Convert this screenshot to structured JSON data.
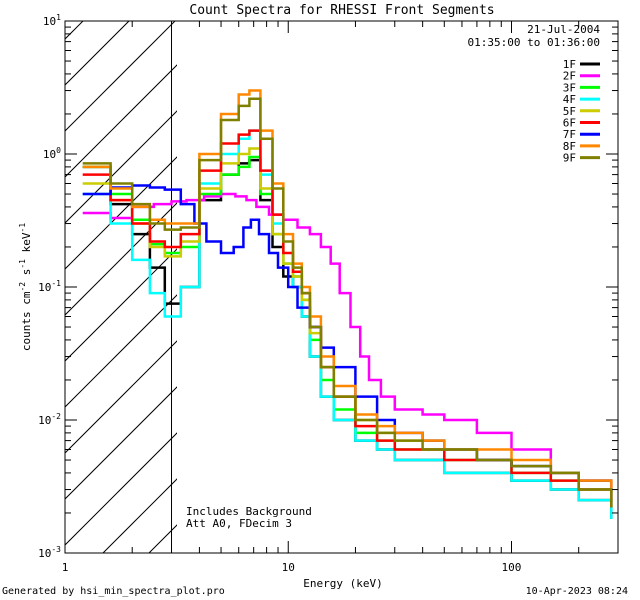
{
  "chart_data": {
    "type": "line",
    "title": "Count Spectra for RHESSI Front Segments",
    "xlabel": "Energy (keV)",
    "ylabel_parts": [
      "counts cm",
      "-2",
      " s",
      "-1",
      " keV",
      "-1"
    ],
    "x_scale": "log",
    "y_scale": "log",
    "xlim": [
      1,
      300
    ],
    "ylim": [
      0.001,
      10
    ],
    "x_ticks": [
      {
        "value": 1,
        "label": "1"
      },
      {
        "value": 10,
        "label": "10"
      },
      {
        "value": 100,
        "label": "100"
      }
    ],
    "y_ticks": [
      {
        "value": 0.001,
        "base": "10",
        "exp": "-3"
      },
      {
        "value": 0.01,
        "base": "10",
        "exp": "-2"
      },
      {
        "value": 0.1,
        "base": "10",
        "exp": "-1"
      },
      {
        "value": 1,
        "base": "10",
        "exp": "0"
      },
      {
        "value": 10,
        "base": "10",
        "exp": "1"
      }
    ],
    "attenuator_hatch_below_keV": 3,
    "legend_header": {
      "date": "21-Jul-2004",
      "time_range": "01:35:00 to 01:36:00"
    },
    "annotations": [
      "Includes Background",
      "Att A0, FDecim 3"
    ],
    "footer_left": "Generated by hsi_min_spectra_plot.pro",
    "footer_right": "10-Apr-2023 08:24",
    "series": [
      {
        "name": "1F",
        "color": "#000000",
        "points": [
          [
            1.2,
            0.8
          ],
          [
            1.6,
            0.42
          ],
          [
            2.0,
            0.25
          ],
          [
            2.4,
            0.14
          ],
          [
            2.8,
            0.075
          ],
          [
            3.3,
            0.1
          ],
          [
            4.0,
            0.45
          ],
          [
            5.0,
            0.7
          ],
          [
            6.0,
            0.85
          ],
          [
            6.7,
            0.9
          ],
          [
            7.5,
            0.45
          ],
          [
            8.5,
            0.2
          ],
          [
            9.5,
            0.12
          ],
          [
            10.5,
            0.1
          ],
          [
            11.5,
            0.06
          ],
          [
            12.5,
            0.03
          ],
          [
            14,
            0.015
          ],
          [
            16,
            0.01
          ],
          [
            20,
            0.007
          ],
          [
            25,
            0.006
          ],
          [
            30,
            0.005
          ],
          [
            40,
            0.005
          ],
          [
            50,
            0.004
          ],
          [
            70,
            0.004
          ],
          [
            100,
            0.0035
          ],
          [
            150,
            0.003
          ],
          [
            200,
            0.0025
          ],
          [
            280,
            0.0018
          ]
        ]
      },
      {
        "name": "2F",
        "color": "#ff00ff",
        "points": [
          [
            1.2,
            0.36
          ],
          [
            1.6,
            0.33
          ],
          [
            2.0,
            0.4
          ],
          [
            2.5,
            0.42
          ],
          [
            3.0,
            0.44
          ],
          [
            3.5,
            0.45
          ],
          [
            4.2,
            0.48
          ],
          [
            5.0,
            0.5
          ],
          [
            5.8,
            0.48
          ],
          [
            6.5,
            0.45
          ],
          [
            7.2,
            0.4
          ],
          [
            8.2,
            0.35
          ],
          [
            9.5,
            0.32
          ],
          [
            11,
            0.28
          ],
          [
            12.5,
            0.25
          ],
          [
            14,
            0.2
          ],
          [
            15.5,
            0.15
          ],
          [
            17,
            0.09
          ],
          [
            19,
            0.05
          ],
          [
            21,
            0.03
          ],
          [
            23,
            0.02
          ],
          [
            26,
            0.015
          ],
          [
            30,
            0.012
          ],
          [
            40,
            0.011
          ],
          [
            50,
            0.01
          ],
          [
            70,
            0.008
          ],
          [
            100,
            0.006
          ],
          [
            150,
            0.004
          ],
          [
            200,
            0.0035
          ],
          [
            280,
            0.0025
          ]
        ]
      },
      {
        "name": "3F",
        "color": "#00ff00",
        "points": [
          [
            1.2,
            0.8
          ],
          [
            1.6,
            0.5
          ],
          [
            2.0,
            0.32
          ],
          [
            2.4,
            0.21
          ],
          [
            2.8,
            0.18
          ],
          [
            3.3,
            0.2
          ],
          [
            4.0,
            0.5
          ],
          [
            5.0,
            0.7
          ],
          [
            6.0,
            0.8
          ],
          [
            6.7,
            0.95
          ],
          [
            7.5,
            0.5
          ],
          [
            8.5,
            0.25
          ],
          [
            9.5,
            0.15
          ],
          [
            10.5,
            0.12
          ],
          [
            11.5,
            0.08
          ],
          [
            12.5,
            0.04
          ],
          [
            14,
            0.02
          ],
          [
            16,
            0.012
          ],
          [
            20,
            0.008
          ],
          [
            25,
            0.007
          ],
          [
            30,
            0.006
          ],
          [
            40,
            0.006
          ],
          [
            50,
            0.005
          ],
          [
            70,
            0.005
          ],
          [
            100,
            0.004
          ],
          [
            150,
            0.0035
          ],
          [
            200,
            0.003
          ],
          [
            280,
            0.0022
          ]
        ]
      },
      {
        "name": "4F",
        "color": "#00ffff",
        "points": [
          [
            1.2,
            0.5
          ],
          [
            1.6,
            0.3
          ],
          [
            2.0,
            0.16
          ],
          [
            2.4,
            0.09
          ],
          [
            2.8,
            0.06
          ],
          [
            3.3,
            0.1
          ],
          [
            4.0,
            0.6
          ],
          [
            5.0,
            1.0
          ],
          [
            6.0,
            1.3
          ],
          [
            6.7,
            1.5
          ],
          [
            7.5,
            0.7
          ],
          [
            8.5,
            0.3
          ],
          [
            9.5,
            0.15
          ],
          [
            10.5,
            0.1
          ],
          [
            11.5,
            0.06
          ],
          [
            12.5,
            0.03
          ],
          [
            14,
            0.015
          ],
          [
            16,
            0.01
          ],
          [
            20,
            0.007
          ],
          [
            25,
            0.006
          ],
          [
            30,
            0.005
          ],
          [
            40,
            0.005
          ],
          [
            50,
            0.004
          ],
          [
            70,
            0.004
          ],
          [
            100,
            0.0035
          ],
          [
            150,
            0.003
          ],
          [
            200,
            0.0025
          ],
          [
            280,
            0.0018
          ]
        ]
      },
      {
        "name": "5F",
        "color": "#cccc00",
        "points": [
          [
            1.2,
            0.6
          ],
          [
            1.6,
            0.45
          ],
          [
            2.0,
            0.3
          ],
          [
            2.4,
            0.2
          ],
          [
            2.8,
            0.17
          ],
          [
            3.3,
            0.22
          ],
          [
            4.0,
            0.55
          ],
          [
            5.0,
            0.85
          ],
          [
            6.0,
            1.0
          ],
          [
            6.7,
            1.1
          ],
          [
            7.5,
            0.55
          ],
          [
            8.5,
            0.25
          ],
          [
            9.5,
            0.15
          ],
          [
            10.5,
            0.12
          ],
          [
            11.5,
            0.08
          ],
          [
            12.5,
            0.045
          ],
          [
            14,
            0.025
          ],
          [
            16,
            0.015
          ],
          [
            20,
            0.01
          ],
          [
            25,
            0.008
          ],
          [
            30,
            0.007
          ],
          [
            40,
            0.007
          ],
          [
            50,
            0.006
          ],
          [
            70,
            0.005
          ],
          [
            100,
            0.0045
          ],
          [
            150,
            0.004
          ],
          [
            200,
            0.0035
          ],
          [
            280,
            0.0028
          ]
        ]
      },
      {
        "name": "6F",
        "color": "#ff0000",
        "points": [
          [
            1.2,
            0.7
          ],
          [
            1.6,
            0.45
          ],
          [
            2.0,
            0.3
          ],
          [
            2.4,
            0.22
          ],
          [
            2.8,
            0.2
          ],
          [
            3.3,
            0.25
          ],
          [
            4.0,
            0.75
          ],
          [
            5.0,
            1.2
          ],
          [
            6.0,
            1.4
          ],
          [
            6.7,
            1.5
          ],
          [
            7.5,
            0.75
          ],
          [
            8.5,
            0.35
          ],
          [
            9.5,
            0.18
          ],
          [
            10.5,
            0.13
          ],
          [
            11.5,
            0.09
          ],
          [
            12.5,
            0.05
          ],
          [
            14,
            0.025
          ],
          [
            16,
            0.015
          ],
          [
            20,
            0.009
          ],
          [
            25,
            0.007
          ],
          [
            30,
            0.006
          ],
          [
            40,
            0.006
          ],
          [
            50,
            0.005
          ],
          [
            70,
            0.005
          ],
          [
            100,
            0.004
          ],
          [
            150,
            0.0035
          ],
          [
            200,
            0.003
          ],
          [
            280,
            0.0022
          ]
        ]
      },
      {
        "name": "7F",
        "color": "#0000ff",
        "points": [
          [
            1.2,
            0.5
          ],
          [
            1.6,
            0.56
          ],
          [
            2.0,
            0.58
          ],
          [
            2.4,
            0.56
          ],
          [
            2.8,
            0.54
          ],
          [
            3.3,
            0.42
          ],
          [
            3.8,
            0.3
          ],
          [
            4.3,
            0.22
          ],
          [
            5.0,
            0.18
          ],
          [
            5.7,
            0.2
          ],
          [
            6.3,
            0.28
          ],
          [
            6.8,
            0.32
          ],
          [
            7.4,
            0.25
          ],
          [
            8.2,
            0.18
          ],
          [
            9.0,
            0.14
          ],
          [
            10,
            0.1
          ],
          [
            11,
            0.07
          ],
          [
            12.5,
            0.05
          ],
          [
            14,
            0.035
          ],
          [
            16,
            0.025
          ],
          [
            20,
            0.015
          ],
          [
            25,
            0.01
          ],
          [
            30,
            0.008
          ],
          [
            40,
            0.007
          ],
          [
            50,
            0.006
          ],
          [
            70,
            0.005
          ],
          [
            100,
            0.0045
          ],
          [
            150,
            0.004
          ],
          [
            200,
            0.0035
          ],
          [
            280,
            0.0025
          ]
        ]
      },
      {
        "name": "8F",
        "color": "#ff8800",
        "points": [
          [
            1.2,
            0.8
          ],
          [
            1.6,
            0.55
          ],
          [
            2.0,
            0.4
          ],
          [
            2.4,
            0.32
          ],
          [
            2.8,
            0.3
          ],
          [
            3.3,
            0.3
          ],
          [
            4.0,
            1.0
          ],
          [
            5.0,
            2.0
          ],
          [
            6.0,
            2.8
          ],
          [
            6.7,
            3.0
          ],
          [
            7.5,
            1.5
          ],
          [
            8.5,
            0.6
          ],
          [
            9.5,
            0.25
          ],
          [
            10.5,
            0.15
          ],
          [
            11.5,
            0.1
          ],
          [
            12.5,
            0.06
          ],
          [
            14,
            0.03
          ],
          [
            16,
            0.018
          ],
          [
            20,
            0.011
          ],
          [
            25,
            0.009
          ],
          [
            30,
            0.008
          ],
          [
            40,
            0.007
          ],
          [
            50,
            0.006
          ],
          [
            70,
            0.006
          ],
          [
            100,
            0.005
          ],
          [
            150,
            0.004
          ],
          [
            200,
            0.0035
          ],
          [
            280,
            0.0025
          ]
        ]
      },
      {
        "name": "9F",
        "color": "#808000",
        "points": [
          [
            1.2,
            0.85
          ],
          [
            1.6,
            0.6
          ],
          [
            2.0,
            0.42
          ],
          [
            2.4,
            0.3
          ],
          [
            2.8,
            0.27
          ],
          [
            3.3,
            0.28
          ],
          [
            4.0,
            0.9
          ],
          [
            5.0,
            1.8
          ],
          [
            6.0,
            2.3
          ],
          [
            6.7,
            2.6
          ],
          [
            7.5,
            1.3
          ],
          [
            8.5,
            0.55
          ],
          [
            9.5,
            0.22
          ],
          [
            10.5,
            0.14
          ],
          [
            11.5,
            0.09
          ],
          [
            12.5,
            0.05
          ],
          [
            14,
            0.025
          ],
          [
            16,
            0.015
          ],
          [
            20,
            0.01
          ],
          [
            25,
            0.008
          ],
          [
            30,
            0.007
          ],
          [
            40,
            0.006
          ],
          [
            50,
            0.006
          ],
          [
            70,
            0.005
          ],
          [
            100,
            0.0045
          ],
          [
            150,
            0.004
          ],
          [
            200,
            0.003
          ],
          [
            280,
            0.0022
          ]
        ]
      }
    ]
  }
}
